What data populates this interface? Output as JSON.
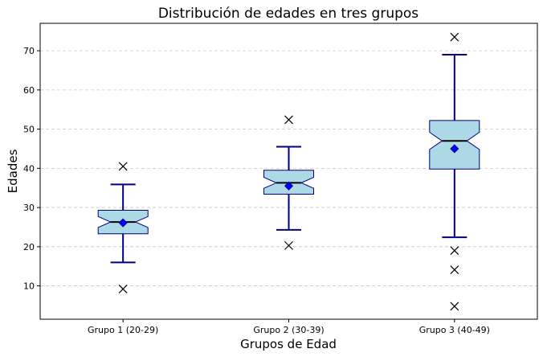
{
  "chart_data": {
    "type": "box",
    "title": "Distribución de edades en tres grupos",
    "xlabel": "Grupos de Edad",
    "ylabel": "Edades",
    "categories": [
      "Grupo 1 (20-29)",
      "Grupo 2 (30-39)",
      "Grupo 3 (40-49)"
    ],
    "ylim": [
      1.5,
      77
    ],
    "yticks": [
      10,
      20,
      30,
      40,
      50,
      60,
      70
    ],
    "grid": "y-dashed",
    "notched": true,
    "box_fill": "#add8e6",
    "box_edge": "#000080",
    "whisker_color": "#000080",
    "median_color": "#000000",
    "mean_marker_color": "#0000ff",
    "series": [
      {
        "values": {
          "whisker_low": 16,
          "q1": 23.3,
          "median": 26.3,
          "q3": 29.3,
          "whisker_high": 35.9,
          "mean": 26.1,
          "notch_low": 24.9,
          "notch_high": 27.7,
          "outliers": [
            40.5,
            9.2
          ]
        }
      },
      {
        "values": {
          "whisker_low": 24.3,
          "q1": 33.4,
          "median": 36.3,
          "q3": 39.5,
          "whisker_high": 45.5,
          "mean": 35.5,
          "notch_low": 34.9,
          "notch_high": 37.7,
          "outliers": [
            52.4,
            20.3
          ]
        }
      },
      {
        "values": {
          "whisker_low": 22.4,
          "q1": 39.8,
          "median": 47,
          "q3": 52.2,
          "whisker_high": 69,
          "mean": 45,
          "notch_low": 44.8,
          "notch_high": 49.2,
          "outliers": [
            73.5,
            19,
            14.1,
            4.8
          ]
        }
      }
    ]
  }
}
